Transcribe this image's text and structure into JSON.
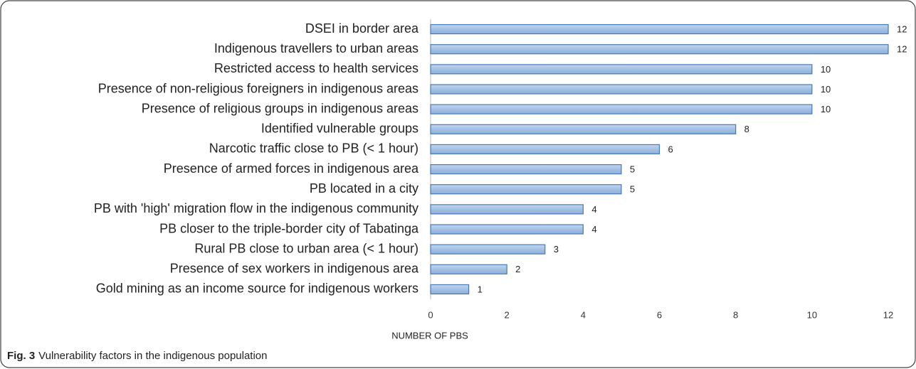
{
  "chart_data": {
    "type": "barh",
    "categories": [
      "DSEI in border area",
      "Indigenous travellers to urban areas",
      "Restricted access to health services",
      "Presence of non-religious foreigners in indigenous areas",
      "Presence of religious groups in indigenous areas",
      "Identified vulnerable groups",
      "Narcotic traffic close to PB (< 1 hour)",
      "Presence of armed forces in indigenous area",
      "PB located in a city",
      "PB with 'high' migration flow in the indigenous community",
      "PB closer to the triple-border city of Tabatinga",
      "Rural PB close to urban area (< 1 hour)",
      "Presence of sex workers in indigenous area",
      "Gold mining as an income source for indigenous workers"
    ],
    "values": [
      12,
      12,
      10,
      10,
      10,
      8,
      6,
      5,
      5,
      4,
      4,
      3,
      2,
      1
    ],
    "color": "#a3c0e4",
    "xlabel": "NUMBER OF PBS",
    "xlim": [
      0,
      12
    ],
    "xticks": [
      0,
      2,
      4,
      6,
      8,
      10,
      12
    ],
    "caption_label": "Fig. 3",
    "caption": "Vulnerability factors in the indigenous population"
  }
}
